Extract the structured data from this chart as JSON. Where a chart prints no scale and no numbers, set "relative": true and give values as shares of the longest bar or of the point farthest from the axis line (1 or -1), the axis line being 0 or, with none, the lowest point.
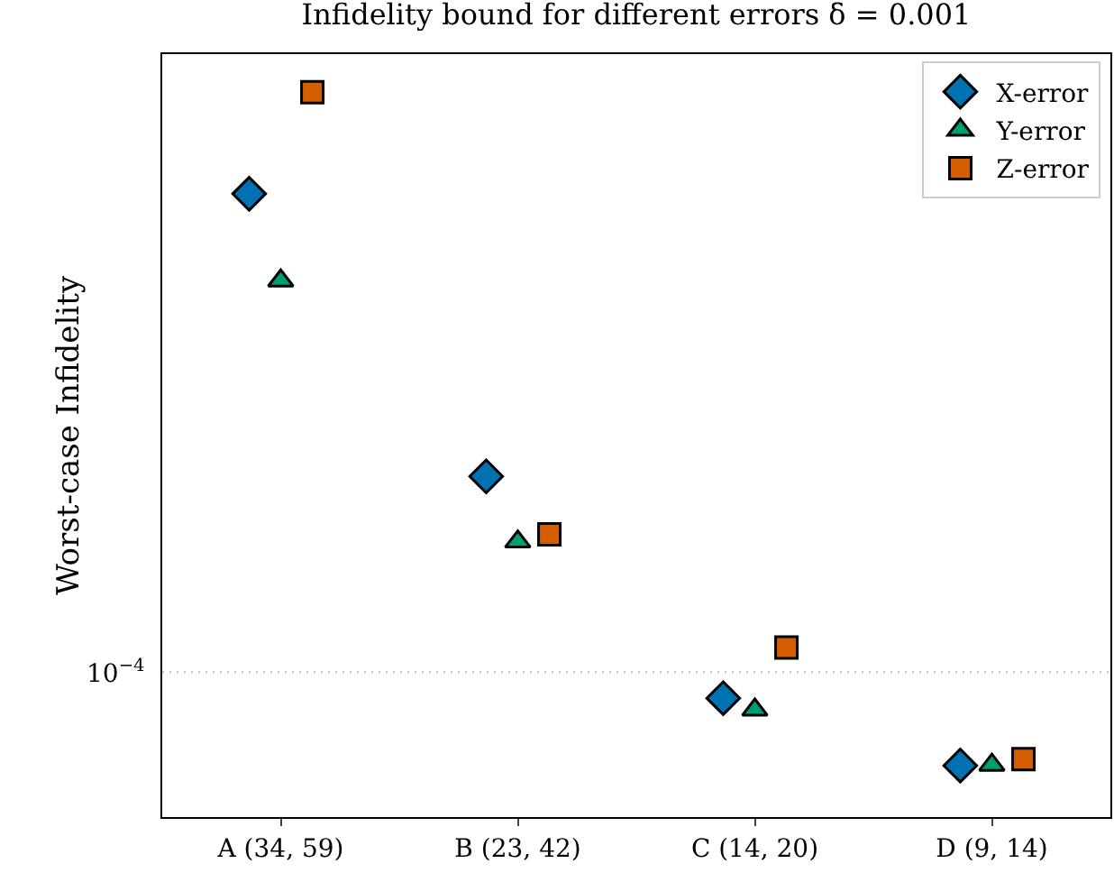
{
  "chart_data": {
    "type": "scatter",
    "title": "Infidelity bound for different errors δ = 0.001",
    "ylabel": "Worst-case Infidelity",
    "categories": [
      "A (34, 59)",
      "B (23, 42)",
      "C (14, 20)",
      "D (9, 14)"
    ],
    "relative": true,
    "series": [
      {
        "name": "X-error",
        "color": "#0072b2",
        "marker": "diamond",
        "values": [
          0.86,
          0.47,
          0.164,
          0.071
        ]
      },
      {
        "name": "Y-error",
        "color": "#009e73",
        "marker": "triangle",
        "values": [
          0.74,
          0.38,
          0.148,
          0.072
        ]
      },
      {
        "name": "Z-error",
        "color": "#d55e00",
        "marker": "square",
        "values": [
          1,
          0.39,
          0.234,
          0.08
        ]
      }
    ],
    "ref_lines": [
      {
        "axis": "y",
        "value": 0.2,
        "label": "10$^{−4}$",
        "color": "#bbbbbb",
        "line_style": "dotted"
      }
    ],
    "legend": "top right"
  }
}
